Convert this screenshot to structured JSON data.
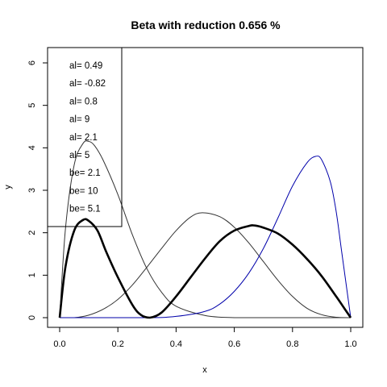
{
  "chart_data": {
    "type": "line",
    "title": "Beta with reduction 0.656 %",
    "xlabel": "x",
    "ylabel": "y",
    "xlim": [
      0,
      1
    ],
    "ylim": [
      0,
      6.2
    ],
    "x_ticks": [
      0.0,
      0.2,
      0.4,
      0.6,
      0.8,
      1.0
    ],
    "x_tick_labels": [
      "0.0",
      "0.2",
      "0.4",
      "0.6",
      "0.8",
      "1.0"
    ],
    "y_ticks": [
      0,
      1,
      2,
      3,
      4,
      5,
      6
    ],
    "y_tick_labels": [
      "0",
      "1",
      "2",
      "3",
      "4",
      "5",
      "6"
    ],
    "grid": false,
    "legend_position": "top-left",
    "legend_entries": [
      "al= 0.49",
      "al= -0.82",
      "al= 0.8",
      "al= 9",
      "al= 2.1",
      "al= 5",
      "be= 2.1",
      "be= 10",
      "be= 5.1"
    ],
    "series": [
      {
        "color": "#333333",
        "stroke": "thin",
        "x": [
          0,
          0.02,
          0.05,
          0.08,
          0.1,
          0.12,
          0.15,
          0.2,
          0.25,
          0.3,
          0.35,
          0.4,
          0.5,
          0.6,
          0.7,
          0.8,
          1.0
        ],
        "y": [
          0,
          2.1,
          3.6,
          4.1,
          4.15,
          4.05,
          3.7,
          2.9,
          1.95,
          1.15,
          0.6,
          0.27,
          0.05,
          0.0,
          0.0,
          0.0,
          0
        ]
      },
      {
        "color": "#333333",
        "stroke": "thin",
        "x": [
          0,
          0.05,
          0.1,
          0.15,
          0.2,
          0.25,
          0.3,
          0.35,
          0.4,
          0.45,
          0.49,
          0.55,
          0.6,
          0.65,
          0.7,
          0.75,
          0.8,
          0.85,
          0.9,
          0.95,
          1.0
        ],
        "y": [
          0,
          0.0,
          0.06,
          0.2,
          0.43,
          0.77,
          1.19,
          1.63,
          2.05,
          2.37,
          2.47,
          2.38,
          2.13,
          1.76,
          1.32,
          0.88,
          0.5,
          0.22,
          0.07,
          0.01,
          0
        ]
      },
      {
        "color": "#0000aa",
        "stroke": "thin",
        "x": [
          0,
          0.3,
          0.4,
          0.5,
          0.55,
          0.6,
          0.65,
          0.7,
          0.75,
          0.8,
          0.85,
          0.88,
          0.9,
          0.93,
          0.95,
          0.97,
          1.0
        ],
        "y": [
          0,
          0.0,
          0.03,
          0.15,
          0.32,
          0.62,
          1.05,
          1.63,
          2.35,
          3.1,
          3.65,
          3.8,
          3.72,
          3.2,
          2.5,
          1.5,
          0
        ]
      },
      {
        "color": "#000000",
        "stroke": "thick",
        "x": [
          0,
          0.02,
          0.05,
          0.08,
          0.1,
          0.13,
          0.16,
          0.2,
          0.25,
          0.28,
          0.31,
          0.35,
          0.4,
          0.45,
          0.5,
          0.55,
          0.6,
          0.65,
          0.67,
          0.7,
          0.75,
          0.8,
          0.85,
          0.9,
          0.95,
          0.98,
          1.0
        ],
        "y": [
          0,
          1.2,
          2.05,
          2.3,
          2.28,
          2.05,
          1.55,
          0.95,
          0.3,
          0.06,
          0.0,
          0.12,
          0.5,
          0.95,
          1.4,
          1.8,
          2.05,
          2.16,
          2.17,
          2.12,
          1.98,
          1.72,
          1.38,
          0.98,
          0.5,
          0.2,
          0
        ]
      }
    ]
  }
}
